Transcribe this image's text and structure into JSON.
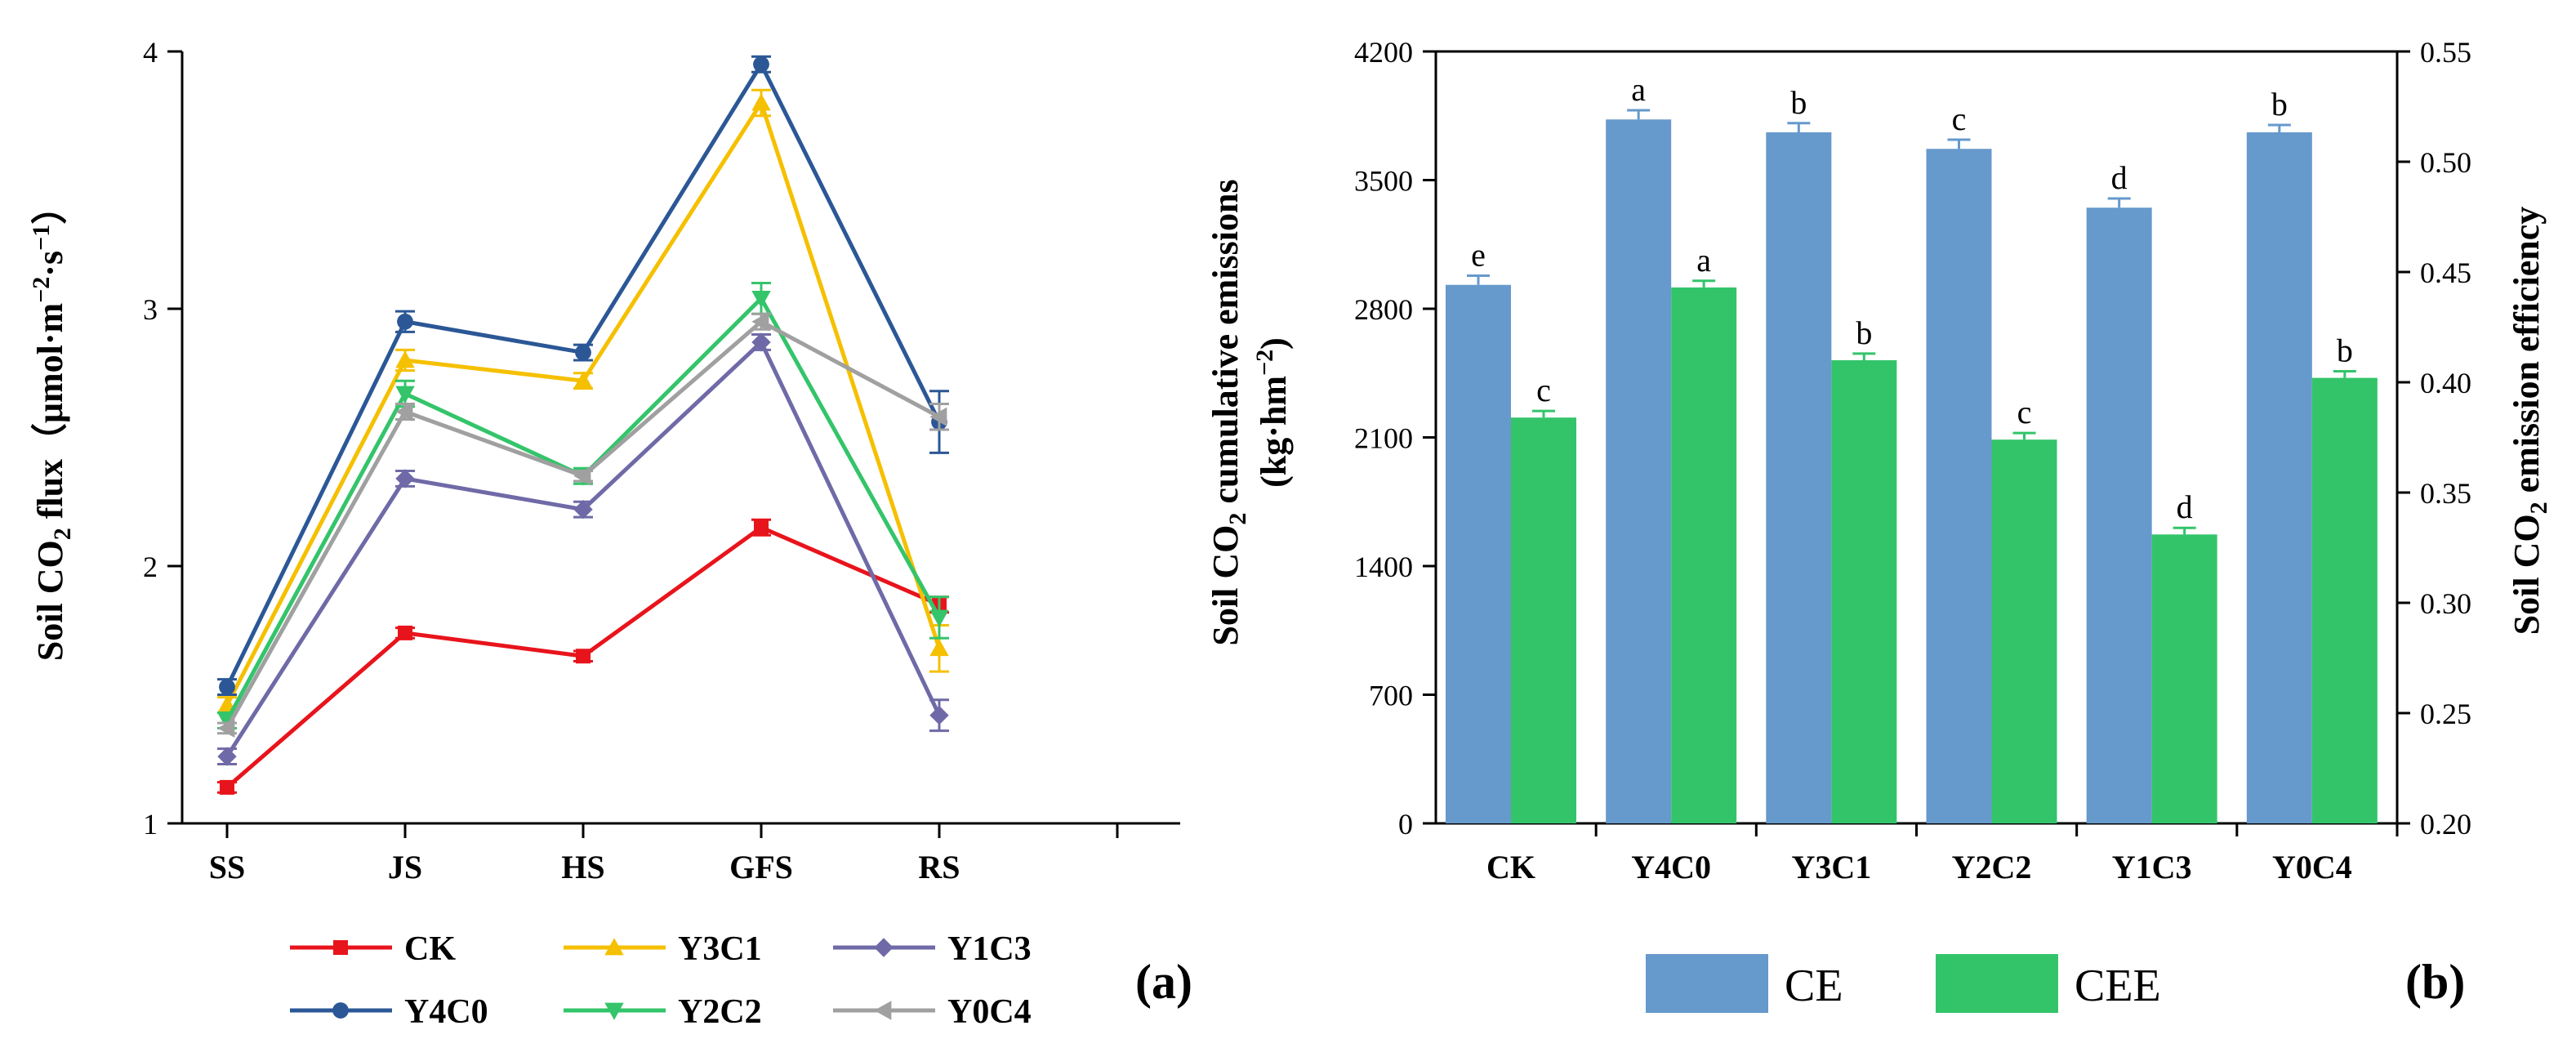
{
  "panel_a": {
    "label": "(a)",
    "y_title_prefix": "Soil CO",
    "y_title_sub": "2",
    "y_title_mid": " flux（μmol·m",
    "y_title_sup1": "−2",
    "y_title_dot": "·s",
    "y_title_sup2": "−1",
    "y_title_end": "）"
  },
  "panel_b": {
    "label": "(b)",
    "yleft_line1_prefix": "Soil CO",
    "yleft_line1_sub": "2",
    "yleft_line1_end": " cumulative emissions",
    "yleft_line2_prefix": "(kg·hm",
    "yleft_line2_sup": "−2",
    "yleft_line2_end": ")",
    "yright_prefix": "Soil CO",
    "yright_sub": "2",
    "yright_end": " emission efficiency"
  },
  "colors": {
    "CK": "#e8141c",
    "Y4C0": "#2b5796",
    "Y3C1": "#f5c000",
    "Y2C2": "#34c46a",
    "Y1C3": "#6f6aa7",
    "Y0C4": "#a0a0a0",
    "CE": "#6699cc",
    "CEE": "#33c46a"
  },
  "chart_data": [
    {
      "id": "a",
      "type": "line",
      "categories": [
        "SS",
        "JS",
        "HS",
        "GFS",
        "RS"
      ],
      "ylim": [
        1,
        4
      ],
      "yticks": [
        "1",
        "2",
        "3",
        "4"
      ],
      "series": [
        {
          "name": "CK",
          "marker": "square",
          "values": [
            1.14,
            1.74,
            1.65,
            2.15,
            1.85
          ],
          "errors": [
            0.02,
            0.02,
            0.02,
            0.03,
            0.03
          ]
        },
        {
          "name": "Y3C1",
          "marker": "triangle",
          "values": [
            1.46,
            2.8,
            2.72,
            3.8,
            1.68
          ],
          "errors": [
            0.03,
            0.04,
            0.03,
            0.05,
            0.09
          ]
        },
        {
          "name": "Y1C3",
          "marker": "diamond",
          "values": [
            1.26,
            2.34,
            2.22,
            2.87,
            1.42
          ],
          "errors": [
            0.03,
            0.03,
            0.03,
            0.03,
            0.06
          ]
        },
        {
          "name": "Y4C0",
          "marker": "circle",
          "values": [
            1.53,
            2.95,
            2.83,
            3.95,
            2.56
          ],
          "errors": [
            0.03,
            0.04,
            0.03,
            0.03,
            0.12
          ]
        },
        {
          "name": "Y2C2",
          "marker": "tri-down",
          "values": [
            1.4,
            2.67,
            2.35,
            3.04,
            1.8
          ],
          "errors": [
            0.03,
            0.05,
            0.03,
            0.06,
            0.08
          ]
        },
        {
          "name": "Y0C4",
          "marker": "tri-left",
          "values": [
            1.37,
            2.6,
            2.35,
            2.95,
            2.58
          ],
          "errors": [
            0.02,
            0.03,
            0.02,
            0.03,
            0.05
          ]
        }
      ]
    },
    {
      "id": "b",
      "type": "bar",
      "categories": [
        "CK",
        "Y4C0",
        "Y3C1",
        "Y2C2",
        "Y1C3",
        "Y0C4"
      ],
      "ylim": [
        0,
        4200
      ],
      "yticks": [
        "0",
        "700",
        "1400",
        "2100",
        "2800",
        "3500",
        "4200"
      ],
      "y2lim": [
        0.2,
        0.55
      ],
      "y2ticks": [
        "0.20",
        "0.25",
        "0.30",
        "0.35",
        "0.40",
        "0.45",
        "0.50",
        "0.55"
      ],
      "series": [
        {
          "name": "CE",
          "axis": "left",
          "values": [
            2930,
            3830,
            3760,
            3670,
            3350,
            3760
          ],
          "errors": [
            50,
            50,
            50,
            50,
            50,
            40
          ],
          "letters": [
            "e",
            "a",
            "b",
            "c",
            "d",
            "b"
          ]
        },
        {
          "name": "CEE",
          "axis": "right",
          "values": [
            0.384,
            0.443,
            0.41,
            0.374,
            0.331,
            0.402
          ],
          "errors": [
            0.003,
            0.003,
            0.003,
            0.003,
            0.003,
            0.003
          ],
          "letters": [
            "c",
            "a",
            "b",
            "c",
            "d",
            "b"
          ]
        }
      ]
    }
  ]
}
